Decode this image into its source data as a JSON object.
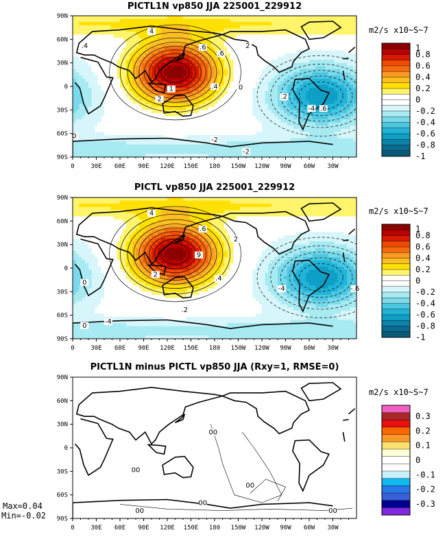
{
  "chart_data": [
    {
      "type": "heatmap",
      "title": "PICTL1N vp850 JJA 225001_229912",
      "units": "m2/s x10~S~7",
      "x_ticks": [
        "0",
        "30E",
        "60E",
        "90E",
        "120E",
        "150E",
        "180",
        "150W",
        "120W",
        "90W",
        "60W",
        "30W"
      ],
      "y_ticks": [
        "90N",
        "60N",
        "30N",
        "0",
        "30S",
        "60S",
        "90S"
      ],
      "colorbar": {
        "labels": [
          "1",
          "0.8",
          "0.6",
          "0.4",
          "0.2",
          "0",
          "-0.2",
          "-0.4",
          "-0.6",
          "-0.8",
          "-1"
        ],
        "colors": [
          "#8c0000",
          "#b80000",
          "#d81a00",
          "#ee4a00",
          "#f66a10",
          "#fb9a20",
          "#fdbf22",
          "#ffe000",
          "#fff46a",
          "#ffffff",
          "#ffffff",
          "#d6f6fb",
          "#a8eaf2",
          "#7ad9ea",
          "#4cc7e2",
          "#22b4d8",
          "#0f9ec6",
          "#0c84aa",
          "#0b6b8e",
          "#085a78"
        ]
      },
      "contour_labels": [
        "4",
        ".6",
        ".4",
        ".6",
        "1",
        "2",
        ".4",
        "2",
        "0",
        ".2",
        "-4",
        ".6",
        "-2",
        "0",
        "-2"
      ],
      "regions": [
        {
          "kind": "positive-max",
          "lon": 130,
          "lat": 20,
          "value": 1.0
        },
        {
          "kind": "negative-min",
          "lon": -45,
          "lat": -15,
          "value": -0.6
        }
      ]
    },
    {
      "type": "heatmap",
      "title": "PICTL vp850 JJA 225001_229912",
      "units": "m2/s x10~S~7",
      "x_ticks": [
        "0",
        "30E",
        "60E",
        "90E",
        "120E",
        "150E",
        "180",
        "150W",
        "120W",
        "90W",
        "60W",
        "30W"
      ],
      "y_ticks": [
        "90N",
        "60N",
        "30N",
        "0",
        "30S",
        "60S",
        "90S"
      ],
      "colorbar": {
        "labels": [
          "1",
          "0.8",
          "0.6",
          "0.4",
          "0.2",
          "0",
          "-0.2",
          "-0.4",
          "-0.6",
          "-0.8",
          "-1"
        ],
        "colors": [
          "#8c0000",
          "#b80000",
          "#d81a00",
          "#ee4a00",
          "#f66a10",
          "#fb9a20",
          "#fdbf22",
          "#ffe000",
          "#fff46a",
          "#ffffff",
          "#ffffff",
          "#d6f6fb",
          "#a8eaf2",
          "#7ad9ea",
          "#4cc7e2",
          "#22b4d8",
          "#0f9ec6",
          "#0c84aa",
          "#0b6b8e",
          "#085a78"
        ]
      },
      "contour_labels": [
        "4",
        ".6",
        "9",
        ".4",
        "2",
        "0",
        "2",
        ".2",
        "-4",
        "-.6",
        "-4",
        "0"
      ],
      "regions": [
        {
          "kind": "positive-max",
          "lon": 130,
          "lat": 20,
          "value": 1.0
        },
        {
          "kind": "negative-min",
          "lon": -45,
          "lat": -15,
          "value": -0.6
        }
      ]
    },
    {
      "type": "heatmap",
      "title": "PICTL1N minus PICTL vp850 JJA (Rxy=1, RMSE=0)",
      "units": "m2/s x10~S~7",
      "x_ticks": [
        "0",
        "30E",
        "60E",
        "90E",
        "120E",
        "150E",
        "180",
        "150W",
        "120W",
        "90W",
        "60W",
        "30W"
      ],
      "y_ticks": [
        "90N",
        "60N",
        "30N",
        "0",
        "30S",
        "60S",
        "90S"
      ],
      "colorbar": {
        "labels": [
          "0.3",
          "0.2",
          "0.1",
          "0",
          "-0.1",
          "-0.2",
          "-0.3"
        ],
        "colors": [
          "#f060c0",
          "#a82828",
          "#e81010",
          "#f86800",
          "#f89828",
          "#fce070",
          "#ffffd8",
          "#ffffff",
          "#ffffff",
          "#c8f0fc",
          "#10b8f0",
          "#2878e8",
          "#3860d8",
          "#000090",
          "#8028e0"
        ]
      },
      "contour_labels": [
        "00",
        "00",
        "00",
        "00",
        "00",
        "00"
      ],
      "max_label": "Max=0.04",
      "min_label": "Min=-0.02"
    }
  ]
}
